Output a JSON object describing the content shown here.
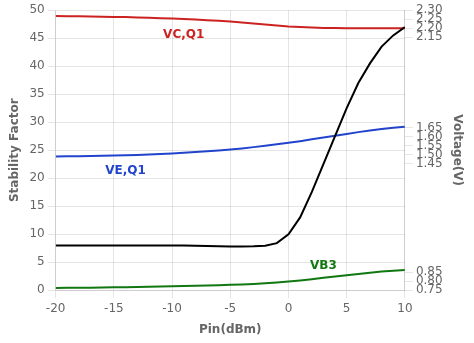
{
  "chart_data": {
    "type": "line",
    "x": [
      -20,
      -19,
      -18,
      -17,
      -16,
      -15,
      -14,
      -13,
      -12,
      -11,
      -10,
      -9,
      -8,
      -7,
      -6,
      -5,
      -4,
      -3,
      -2,
      -1,
      0,
      1,
      2,
      3,
      4,
      5,
      6,
      7,
      8,
      9,
      10
    ],
    "xlabel": "Pin(dBm)",
    "ylabel": "Stability Factor",
    "y2label": "Voltage(V)",
    "xlim": [
      -20,
      10
    ],
    "xticks": [
      -20,
      -15,
      -10,
      -5,
      0,
      5,
      10
    ],
    "ylim": [
      0,
      50
    ],
    "yticks": [
      0,
      5,
      10,
      15,
      20,
      25,
      30,
      35,
      40,
      45,
      50
    ],
    "y2lim": [
      0.75,
      2.3
    ],
    "y2ticks": [
      0.75,
      {
        "value": 0.8,
        "label": "0.80"
      },
      0.85,
      1.45,
      {
        "value": 1.5,
        "label": "1.50"
      },
      1.55,
      {
        "value": 1.6,
        "label": "1.60"
      },
      1.65,
      2.15,
      {
        "value": 2.2,
        "label": "2.20"
      },
      2.25,
      {
        "value": 2.3,
        "label": "2.30"
      }
    ],
    "grid": true,
    "series": [
      {
        "color": "#000000",
        "values": [
          8.0,
          8.0,
          8.0,
          8.0,
          8.0,
          8.0,
          8.0,
          8.0,
          8.0,
          8.0,
          8.0,
          8.0,
          7.95,
          7.9,
          7.85,
          7.8,
          7.8,
          7.85,
          7.95,
          8.4,
          10.0,
          13.0,
          17.5,
          22.5,
          27.5,
          32.5,
          37.0,
          40.5,
          43.5,
          45.5,
          47.0
        ]
      },
      {
        "name": "VC,Q1",
        "color": "#cc2222",
        "axis": "y2",
        "values": [
          2.268,
          2.267,
          2.266,
          2.265,
          2.264,
          2.263,
          2.262,
          2.26,
          2.258,
          2.256,
          2.254,
          2.251,
          2.248,
          2.245,
          2.241,
          2.237,
          2.232,
          2.227,
          2.221,
          2.215,
          2.21,
          2.207,
          2.204,
          2.202,
          2.201,
          2.2,
          2.2,
          2.2,
          2.2,
          2.2,
          2.2
        ]
      },
      {
        "name": "VE,Q1",
        "color": "#2244cc",
        "axis": "y2",
        "values": [
          1.49,
          1.491,
          1.492,
          1.493,
          1.494,
          1.495,
          1.497,
          1.499,
          1.501,
          1.504,
          1.507,
          1.511,
          1.515,
          1.519,
          1.524,
          1.529,
          1.535,
          1.542,
          1.55,
          1.558,
          1.566,
          1.575,
          1.585,
          1.595,
          1.605,
          1.615,
          1.625,
          1.634,
          1.642,
          1.649,
          1.655
        ]
      },
      {
        "name": "VB3",
        "color": "#117711",
        "axis": "y2",
        "values": [
          0.762,
          0.763,
          0.764,
          0.764,
          0.765,
          0.766,
          0.767,
          0.768,
          0.769,
          0.77,
          0.772,
          0.773,
          0.775,
          0.776,
          0.778,
          0.78,
          0.782,
          0.785,
          0.789,
          0.793,
          0.798,
          0.804,
          0.811,
          0.819,
          0.826,
          0.833,
          0.84,
          0.847,
          0.853,
          0.858,
          0.862
        ]
      }
    ]
  }
}
